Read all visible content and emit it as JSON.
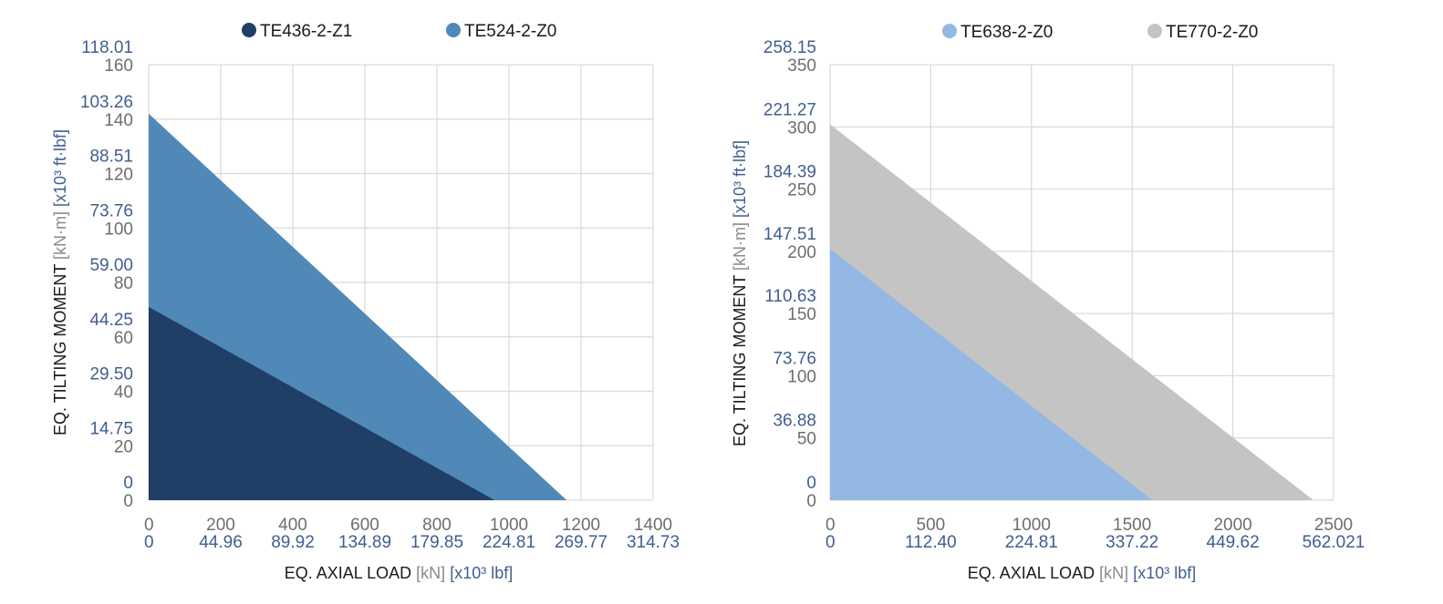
{
  "chart_data": [
    {
      "type": "area",
      "legend_position": "top",
      "grid": true,
      "x_ticks": [
        "0",
        "200",
        "400",
        "600",
        "800",
        "1000",
        "1200",
        "1400"
      ],
      "x_ticks_imperial": [
        "0",
        "44.96",
        "89.92",
        "134.89",
        "179.85",
        "224.81",
        "269.77",
        "314.73"
      ],
      "y_ticks": [
        "0",
        "20",
        "40",
        "60",
        "80",
        "100",
        "120",
        "140",
        "160"
      ],
      "y_ticks_imperial": [
        "0",
        "14.75",
        "29.50",
        "44.25",
        "59.00",
        "73.76",
        "88.51",
        "103.26",
        "118.01"
      ],
      "xlim": [
        0,
        1400
      ],
      "ylim": [
        0,
        160
      ],
      "xlabel": {
        "main": "EQ. AXIAL LOAD",
        "unit_metric": "[kN]",
        "unit_imperial": "[x10³ lbf]"
      },
      "ylabel": {
        "main": "EQ. TILTING MOMENT",
        "unit_metric": "[kN·m]",
        "unit_imperial": "[x10³ ft·lbf]"
      },
      "series": [
        {
          "name": "TE524-2-Z0",
          "color": "#5088b8",
          "x": [
            0,
            1160
          ],
          "y": [
            142,
            0
          ]
        },
        {
          "name": "TE436-2-Z1",
          "color": "#1f3f66",
          "x": [
            0,
            960
          ],
          "y": [
            71,
            0
          ]
        }
      ]
    },
    {
      "type": "area",
      "legend_position": "top",
      "grid": true,
      "x_ticks": [
        "0",
        "500",
        "1000",
        "1500",
        "2000",
        "2500"
      ],
      "x_ticks_imperial": [
        "0",
        "112.40",
        "224.81",
        "337.22",
        "449.62",
        "562.021"
      ],
      "y_ticks": [
        "0",
        "50",
        "100",
        "150",
        "200",
        "250",
        "300",
        "350"
      ],
      "y_ticks_imperial": [
        "0",
        "36.88",
        "73.76",
        "110.63",
        "147.51",
        "184.39",
        "221.27",
        "258.15"
      ],
      "xlim": [
        0,
        2500
      ],
      "ylim": [
        0,
        350
      ],
      "xlabel": {
        "main": "EQ. AXIAL LOAD",
        "unit_metric": "[kN]",
        "unit_imperial": "[x10³ lbf]"
      },
      "ylabel": {
        "main": "EQ. TILTING MOMENT",
        "unit_metric": "[kN·m]",
        "unit_imperial": "[x10³ ft·lbf]"
      },
      "series": [
        {
          "name": "TE770-2-Z0",
          "color": "#c4c4c4",
          "x": [
            0,
            2400
          ],
          "y": [
            302,
            0
          ]
        },
        {
          "name": "TE638-2-Z0",
          "color": "#93b8e4",
          "x": [
            0,
            1600
          ],
          "y": [
            202,
            0
          ]
        }
      ]
    }
  ]
}
